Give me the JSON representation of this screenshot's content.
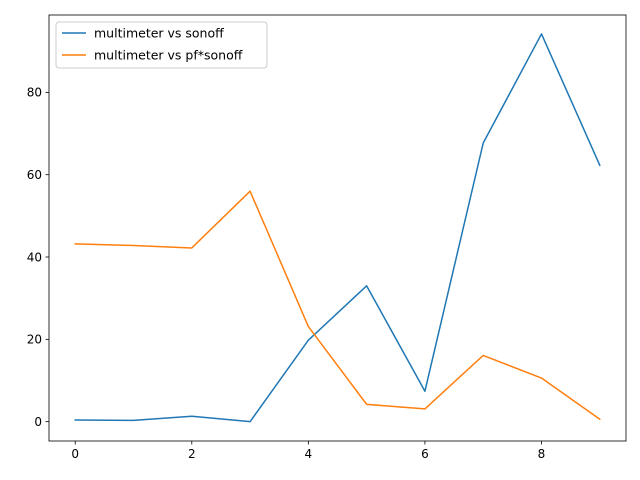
{
  "chart_data": {
    "type": "line",
    "title": "",
    "xlabel": "",
    "ylabel": "",
    "xlim": [
      -0.45,
      9.45
    ],
    "ylim": [
      -4.7,
      98.8
    ],
    "xticks": [
      0,
      2,
      4,
      6,
      8
    ],
    "yticks": [
      0,
      20,
      40,
      60,
      80
    ],
    "grid": false,
    "legend": "upper-left",
    "x": [
      0,
      1,
      2,
      3,
      4,
      5,
      6,
      7,
      8,
      9
    ],
    "series": [
      {
        "name": "multimeter vs sonoff",
        "color": "#1f77b4",
        "values": [
          0.4,
          0.3,
          1.3,
          0.0,
          19.8,
          33.0,
          7.4,
          67.7,
          94.2,
          62.3
        ]
      },
      {
        "name": "multimeter vs pf*sonoff",
        "color": "#ff7f0e",
        "values": [
          43.2,
          42.8,
          42.2,
          56.0,
          23.1,
          4.2,
          3.1,
          16.1,
          10.6,
          0.6
        ]
      }
    ]
  }
}
